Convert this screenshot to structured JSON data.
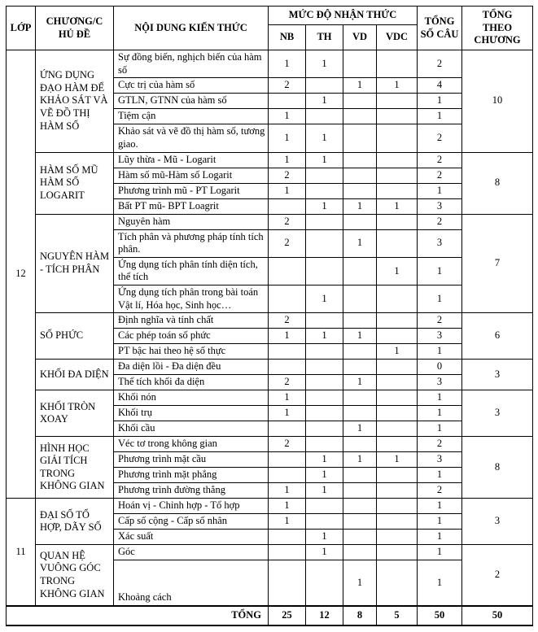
{
  "table": {
    "headers": {
      "lop": "LỚP",
      "chuong": "CHƯƠNG/C HỦ ĐỀ",
      "noi_dung": "NỘI DUNG KIẾN THỨC",
      "muc_do": "MỨC ĐỘ NHẬN THỨC",
      "levels": [
        "NB",
        "TH",
        "VD",
        "VDC"
      ],
      "tong_so_cau": "TỔNG SỐ CÂU",
      "tong_theo_chuong": "TỔNG THEO CHƯƠNG"
    },
    "grades": [
      {
        "lop": "12",
        "chapters": [
          {
            "name": "ỨNG DỤNG ĐẠO HÀM ĐỂ KHẢO SÁT VÀ VẼ ĐỒ THỊ HÀM SỐ",
            "total": "10",
            "topics": [
              {
                "label": "Sự đồng biến, nghịch biến của hàm số",
                "nb": "1",
                "th": "1",
                "vd": "",
                "vdc": "",
                "total": "2"
              },
              {
                "label": "Cực trị của hàm số",
                "nb": "2",
                "th": "",
                "vd": "1",
                "vdc": "1",
                "total": "4"
              },
              {
                "label": "GTLN, GTNN của hàm số",
                "nb": "",
                "th": "1",
                "vd": "",
                "vdc": "",
                "total": "1"
              },
              {
                "label": "Tiệm cận",
                "nb": "1",
                "th": "",
                "vd": "",
                "vdc": "",
                "total": "1"
              },
              {
                "label": "Khảo sát và vẽ đồ thị hàm số, tương giao.",
                "nb": "1",
                "th": "1",
                "vd": "",
                "vdc": "",
                "total": "2"
              }
            ]
          },
          {
            "name": "HÀM SỐ MŨ HÀM SỐ LOGARIT",
            "total": "8",
            "topics": [
              {
                "label": "Lũy thừa - Mũ - Logarit",
                "nb": "1",
                "th": "1",
                "vd": "",
                "vdc": "",
                "total": "2"
              },
              {
                "label": "Hàm số mũ-Hàm số Logarit",
                "nb": "2",
                "th": "",
                "vd": "",
                "vdc": "",
                "total": "2"
              },
              {
                "label": "Phương trình mũ - PT Logarit",
                "nb": "1",
                "th": "",
                "vd": "",
                "vdc": "",
                "total": "1"
              },
              {
                "label": "Bất PT mũ- BPT Loagrit",
                "nb": "",
                "th": "1",
                "vd": "1",
                "vdc": "1",
                "total": "3"
              }
            ]
          },
          {
            "name": "NGUYÊN HÀM - TÍCH PHÂN",
            "total": "7",
            "topics": [
              {
                "label": "Nguyên hàm",
                "nb": "2",
                "th": "",
                "vd": "",
                "vdc": "",
                "total": "2"
              },
              {
                "label": "Tích phân và phương pháp tính tích phân.",
                "nb": "2",
                "th": "",
                "vd": "1",
                "vdc": "",
                "total": "3"
              },
              {
                "label": "Ứng dụng tích phân tính diện tích, thể tích",
                "nb": "",
                "th": "",
                "vd": "",
                "vdc": "1",
                "total": "1"
              },
              {
                "label": "Ứng dụng tích phân trong bài toán Vật lí, Hóa học, Sinh học…",
                "nb": "",
                "th": "1",
                "vd": "",
                "vdc": "",
                "total": "1"
              }
            ]
          },
          {
            "name": "SỐ PHỨC",
            "total": "6",
            "topics": [
              {
                "label": "Định nghĩa và tính chất",
                "nb": "2",
                "th": "",
                "vd": "",
                "vdc": "",
                "total": "2"
              },
              {
                "label": "Các phép toán số phức",
                "nb": "1",
                "th": "1",
                "vd": "1",
                "vdc": "",
                "total": "3"
              },
              {
                "label": "PT bậc hai theo hệ số thực",
                "nb": "",
                "th": "",
                "vd": "",
                "vdc": "1",
                "total": "1"
              }
            ]
          },
          {
            "name": "KHỐI ĐA DIỆN",
            "total": "3",
            "topics": [
              {
                "label": "Đa diện lồi - Đa diện đều",
                "nb": "",
                "th": "",
                "vd": "",
                "vdc": "",
                "total": "0"
              },
              {
                "label": "Thể tích khối đa diện",
                "nb": "2",
                "th": "",
                "vd": "1",
                "vdc": "",
                "total": "3"
              }
            ]
          },
          {
            "name": "KHỐI TRÒN XOAY",
            "total": "3",
            "topics": [
              {
                "label": "Khối nón",
                "nb": "1",
                "th": "",
                "vd": "",
                "vdc": "",
                "total": "1"
              },
              {
                "label": "Khối trụ",
                "nb": "1",
                "th": "",
                "vd": "",
                "vdc": "",
                "total": "1"
              },
              {
                "label": "Khối cầu",
                "nb": "",
                "th": "",
                "vd": "1",
                "vdc": "",
                "total": "1"
              }
            ]
          },
          {
            "name": "HÌNH HỌC GIẢI TÍCH TRONG KHÔNG GIAN",
            "total": "8",
            "topics": [
              {
                "label": "Véc tơ trong không gian",
                "nb": "2",
                "th": "",
                "vd": "",
                "vdc": "",
                "total": "2"
              },
              {
                "label": "Phương trình mặt cầu",
                "nb": "",
                "th": "1",
                "vd": "1",
                "vdc": "1",
                "total": "3"
              },
              {
                "label": "Phương trình mặt phẳng",
                "nb": "",
                "th": "1",
                "vd": "",
                "vdc": "",
                "total": "1"
              },
              {
                "label": "Phương trình đường thẳng",
                "nb": "1",
                "th": "1",
                "vd": "",
                "vdc": "",
                "total": "2"
              }
            ]
          }
        ]
      },
      {
        "lop": "11",
        "chapters": [
          {
            "name": "ĐẠI SỐ TỔ HỢP, DÃY SỐ",
            "total": "3",
            "topics": [
              {
                "label": "Hoán vị - Chỉnh hợp - Tổ hợp",
                "nb": "1",
                "th": "",
                "vd": "",
                "vdc": "",
                "total": "1"
              },
              {
                "label": "Cấp số cộng - Cấp số nhân",
                "nb": "1",
                "th": "",
                "vd": "",
                "vdc": "",
                "total": "1"
              },
              {
                "label": "Xác suất",
                "nb": "",
                "th": "1",
                "vd": "",
                "vdc": "",
                "total": "1"
              }
            ]
          },
          {
            "name": "QUAN HỆ VUÔNG GÓC TRONG KHÔNG GIAN",
            "total": "2",
            "topics": [
              {
                "label": "Góc",
                "nb": "",
                "th": "1",
                "vd": "",
                "vdc": "",
                "total": "1"
              },
              {
                "label": "Khoảng cách",
                "nb": "",
                "th": "",
                "vd": "1",
                "vdc": "",
                "total": "1"
              }
            ]
          }
        ]
      }
    ],
    "footer": {
      "label": "TỔNG",
      "nb": "25",
      "th": "12",
      "vd": "8",
      "vdc": "5",
      "total": "50",
      "chapter_total": "50"
    }
  }
}
